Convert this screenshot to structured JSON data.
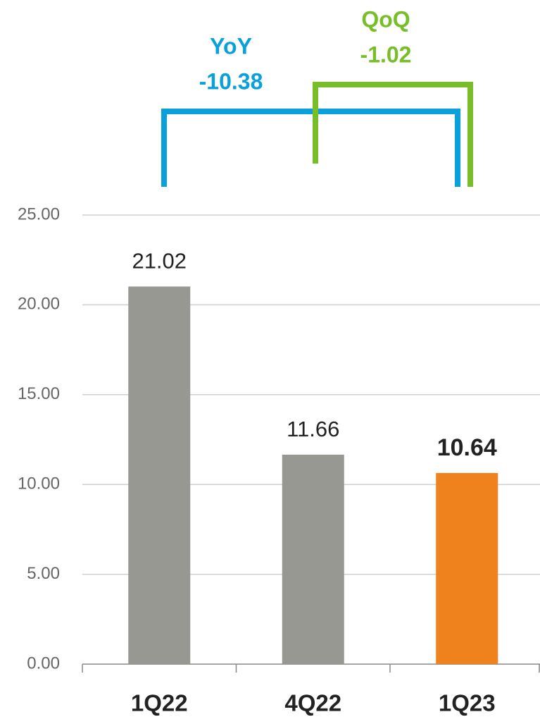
{
  "chart_data": {
    "type": "bar",
    "categories": [
      "1Q22",
      "4Q22",
      "1Q23"
    ],
    "values": [
      21.02,
      11.66,
      10.64
    ],
    "colors": [
      "#989892",
      "#989892",
      "#f0821e"
    ],
    "ylim": [
      0,
      25
    ],
    "yticks": [
      {
        "value": 0,
        "label": "0.00"
      },
      {
        "value": 5,
        "label": "5.00"
      },
      {
        "value": 10,
        "label": "10.00"
      },
      {
        "value": 15,
        "label": "15.00"
      },
      {
        "value": 20,
        "label": "20.00"
      },
      {
        "value": 25,
        "label": "25.00"
      }
    ],
    "grid": true,
    "annotations": [
      {
        "label": "YoY",
        "value": -10.38,
        "color": "#0aa0dc"
      },
      {
        "label": "QoQ",
        "value": -1.02,
        "color": "#78be28"
      }
    ]
  }
}
